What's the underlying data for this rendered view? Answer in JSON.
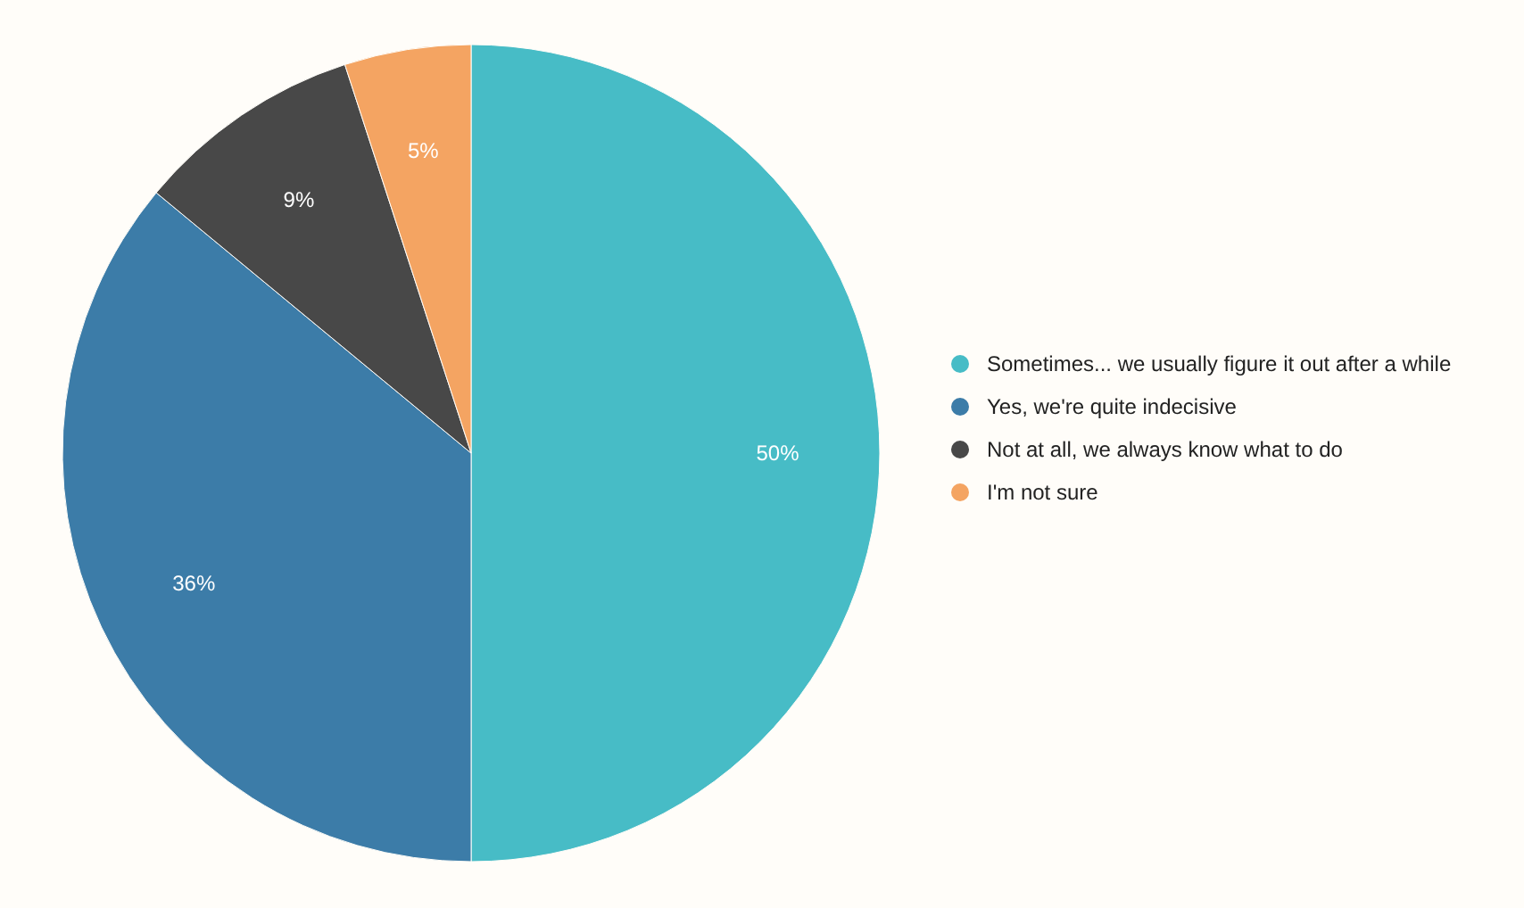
{
  "chart_data": {
    "type": "pie",
    "categories": [
      "Sometimes... we usually figure it out after a while",
      "Yes, we're quite indecisive",
      "Not at all, we always know what to do",
      "I'm not sure"
    ],
    "values": [
      50,
      36,
      9,
      5
    ],
    "colors": [
      "#47bcc6",
      "#3c7ca8",
      "#484848",
      "#f4a462"
    ],
    "value_labels": [
      "50%",
      "36%",
      "9%",
      "5%"
    ],
    "legend": "right"
  }
}
